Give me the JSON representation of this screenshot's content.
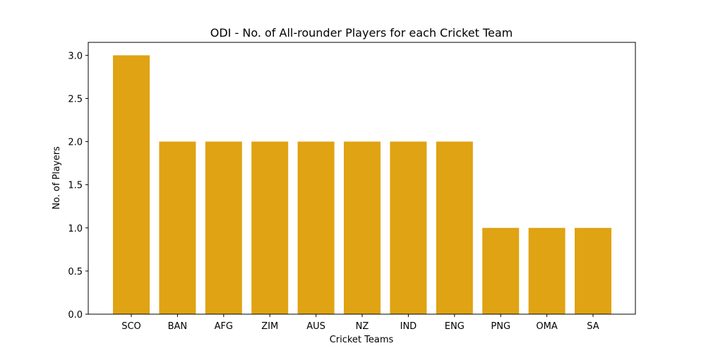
{
  "chart_data": {
    "type": "bar",
    "title": "ODI - No. of All-rounder Players for each Cricket Team",
    "xlabel": "Cricket Teams",
    "ylabel": "No. of Players",
    "categories": [
      "SCO",
      "BAN",
      "AFG",
      "ZIM",
      "AUS",
      "NZ",
      "IND",
      "ENG",
      "PNG",
      "OMA",
      "SA"
    ],
    "values": [
      3,
      2,
      2,
      2,
      2,
      2,
      2,
      2,
      1,
      1,
      1
    ],
    "ylim": [
      0,
      3.15
    ],
    "yticks": [
      "0.0",
      "0.5",
      "1.0",
      "1.5",
      "2.0",
      "2.5",
      "3.0"
    ],
    "bar_color": "#dfa313",
    "grid": false,
    "legend": "none"
  }
}
